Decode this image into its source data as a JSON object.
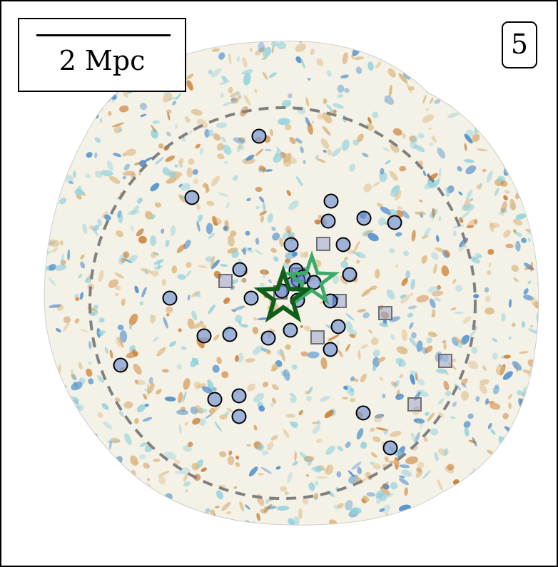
{
  "scale_bar": {
    "label": "2 Mpc"
  },
  "panel": {
    "number": "5"
  },
  "colors": {
    "frame": "#000000",
    "field_base": "#f4f1e6",
    "blue_high": "#3f86c9",
    "cyan_mid": "#8fd0dc",
    "orange_low": "#c9782a",
    "tan_mid": "#d9b47a",
    "dashed_circle": "#808080",
    "circle_marker_fill": "#5a7fd0",
    "square_marker": "#707070",
    "star_dark": "#0f5e1a",
    "star_light": "#3daa6a"
  },
  "markers": {
    "circles": 32,
    "squares": 9,
    "stars": 2
  }
}
